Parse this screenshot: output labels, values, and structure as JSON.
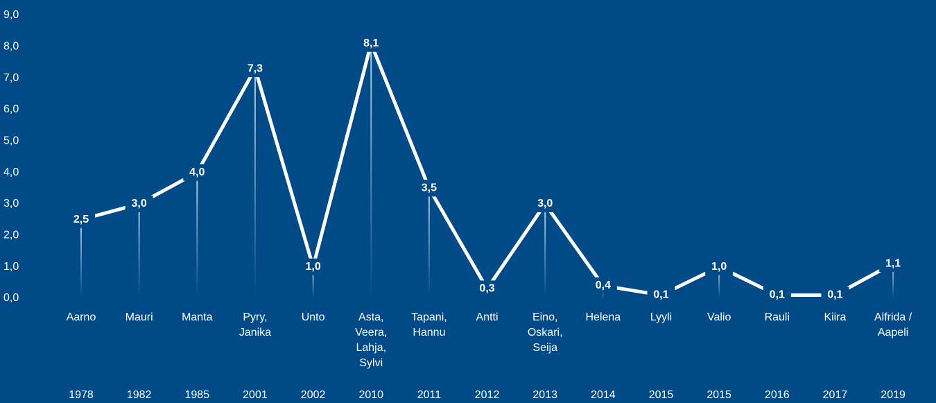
{
  "chart_data": {
    "type": "line",
    "categories": [
      [
        "Aarno"
      ],
      [
        "Mauri"
      ],
      [
        "Manta"
      ],
      [
        "Pyry,",
        "Janika"
      ],
      [
        "Unto"
      ],
      [
        "Asta,",
        "Veera,",
        "Lahja,",
        "Sylvi"
      ],
      [
        "Tapani,",
        "Hannu"
      ],
      [
        "Antti"
      ],
      [
        "Eino,",
        "Oskari,",
        "Seija"
      ],
      [
        "Helena"
      ],
      [
        "Lyyli"
      ],
      [
        "Valio"
      ],
      [
        "Rauli"
      ],
      [
        "Kiira"
      ],
      [
        "Alfrida /",
        "Aapeli"
      ]
    ],
    "years": [
      "1978",
      "1982",
      "1985",
      "2001",
      "2002",
      "2010",
      "2011",
      "2012",
      "2013",
      "2014",
      "2015",
      "2015",
      "2016",
      "2017",
      "2019"
    ],
    "series": [
      {
        "color": "#ffffff",
        "values": [
          2.5,
          3.0,
          4.0,
          7.3,
          1.0,
          8.1,
          3.5,
          0.3,
          3.0,
          0.4,
          0.1,
          1.0,
          0.1,
          0.1,
          1.1
        ],
        "value_labels": [
          "2,5",
          "3,0",
          "4,0",
          "7,3",
          "1,0",
          "8,1",
          "3,5",
          "0,3",
          "3,0",
          "0,4",
          "0,1",
          "1,0",
          "0,1",
          "0,1",
          "1,1"
        ]
      }
    ],
    "ylim": [
      0,
      9
    ],
    "yticks": [
      {
        "value": 0,
        "label": "0,0"
      },
      {
        "value": 1,
        "label": "1,0"
      },
      {
        "value": 2,
        "label": "2,0"
      },
      {
        "value": 3,
        "label": "3,0"
      },
      {
        "value": 4,
        "label": "4,0"
      },
      {
        "value": 5,
        "label": "5,0"
      },
      {
        "value": 6,
        "label": "6,0"
      },
      {
        "value": 7,
        "label": "7,0"
      },
      {
        "value": 8,
        "label": "8,0"
      },
      {
        "value": 9,
        "label": "9,0"
      }
    ],
    "background": "#004a87"
  }
}
